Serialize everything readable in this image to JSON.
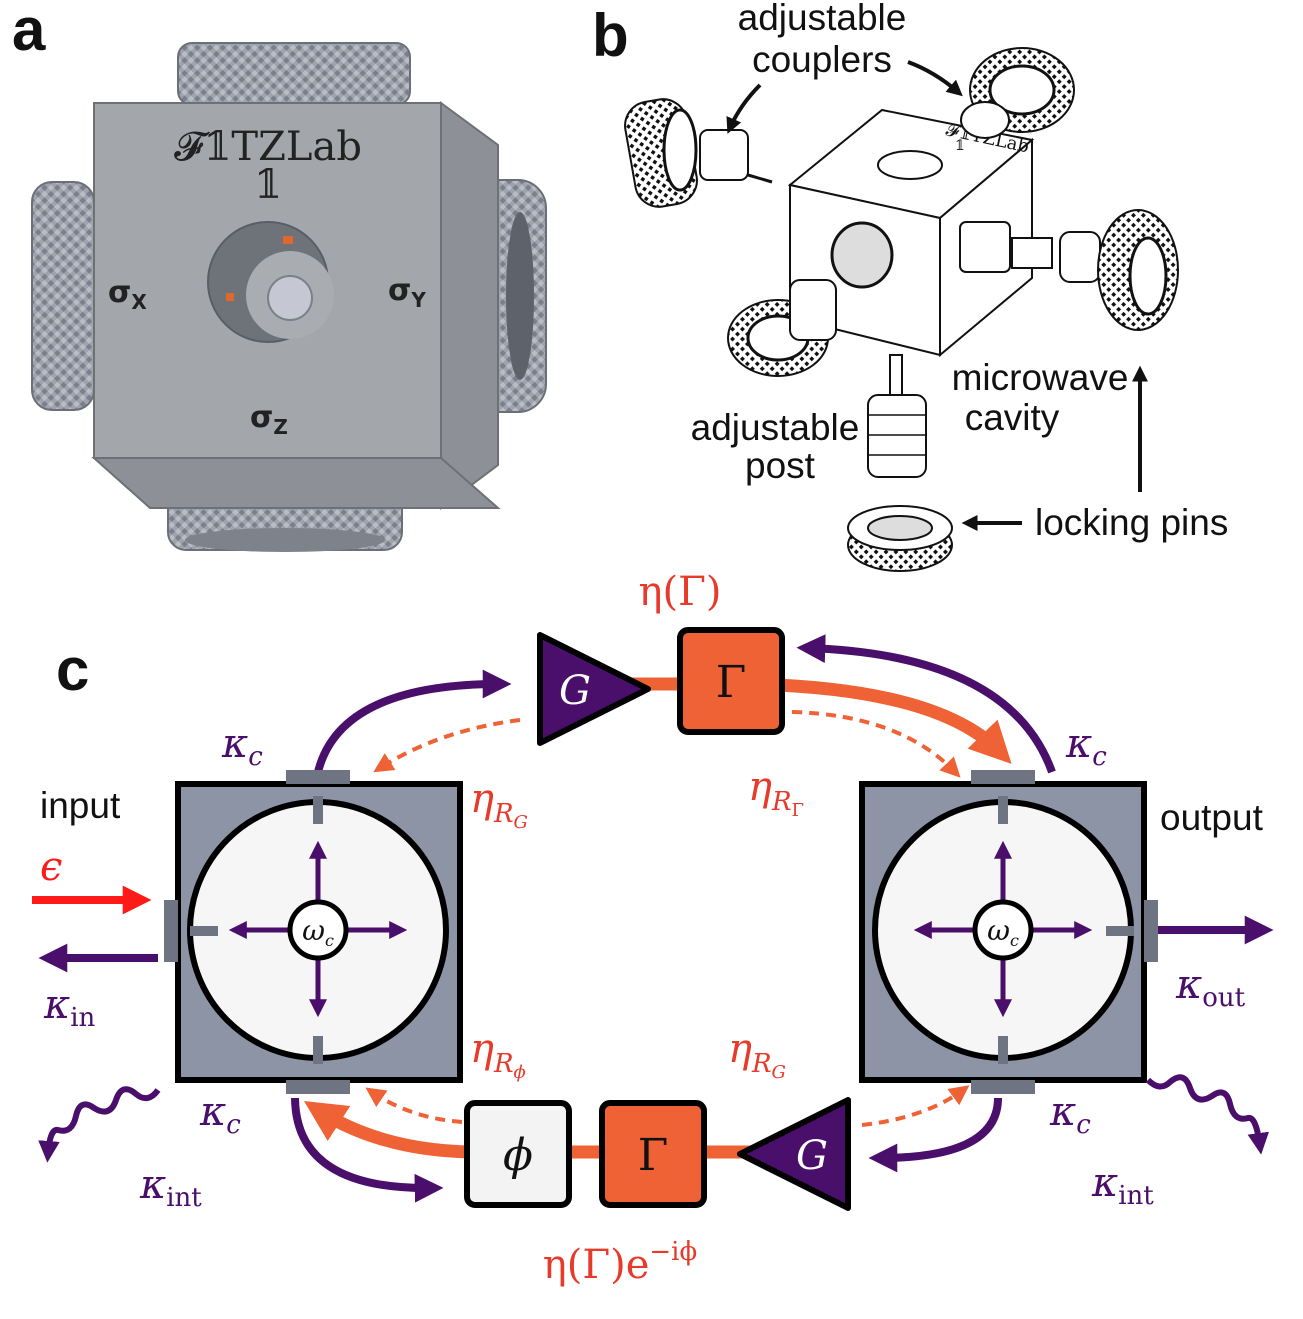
{
  "panels": {
    "a": "a",
    "b": "b",
    "c": "c"
  },
  "panel_a": {
    "logo_line1": "𝓕𝟙TZLab",
    "logo_line2": "𝟙",
    "sigma_x": "σ",
    "sigma_x_sub": "X",
    "sigma_y": "σ",
    "sigma_y_sub": "Y",
    "sigma_z": "σ",
    "sigma_z_sub": "Z"
  },
  "panel_b": {
    "adjustable_couplers_1": "adjustable",
    "adjustable_couplers_2": "couplers",
    "microwave_cavity_1": "microwave",
    "microwave_cavity_2": "cavity",
    "adjustable_post_1": "adjustable",
    "adjustable_post_2": "post",
    "locking_pins": "locking pins",
    "logo": "𝓕𝟙TZLab",
    "logo2": "𝟙"
  },
  "panel_c": {
    "input": "input",
    "output": "output",
    "epsilon": "ϵ",
    "kappa_in": "κ",
    "kappa_in_sub": "in",
    "kappa_out": "κ",
    "kappa_out_sub": "out",
    "kappa_c": "κ",
    "kappa_c_sub": "c",
    "kappa_int": "κ",
    "kappa_int_sub": "int",
    "omega_c": "ω",
    "omega_c_sub": "c",
    "gain_label": "G",
    "gamma_label": "Γ",
    "phi_label": "ϕ",
    "eta_gamma_top": "η(Γ)",
    "eta_gamma_bottom": "η(Γ)e",
    "eta_gamma_bottom_exp": "−iϕ",
    "eta_R": "η",
    "R": "R",
    "sub_G": "G",
    "sub_Gamma": "Γ",
    "sub_phi": "ϕ"
  },
  "colors": {
    "purple": "#4a0e6b",
    "orange": "#ef6236",
    "red": "#e83a2a",
    "cavity_gray": "#8c94a5",
    "cube_gray": "#a3a7ab"
  }
}
